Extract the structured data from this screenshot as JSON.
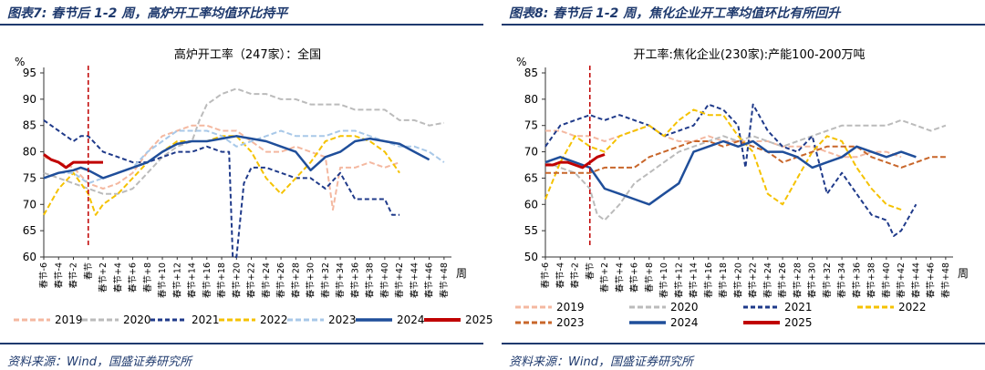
{
  "left": {
    "figure_title": "图表7: 春节后 1-2 周，高炉开工率均值环比持平",
    "source": "资料来源：Wind，国盛证券研究所"
  },
  "right": {
    "figure_title": "图表8: 春节后 1-2 周，焦化企业开工率均值环比有所回升",
    "source": "资料来源：Wind，国盛证券研究所"
  },
  "chart_data": [
    {
      "type": "line",
      "title": "高炉开工率（247家）：全国",
      "ylabel": "%",
      "xlabel": "周",
      "ylim": [
        60,
        95
      ],
      "yticks": [
        60,
        65,
        70,
        75,
        80,
        85,
        90,
        95
      ],
      "x_range": [
        -6,
        49
      ],
      "event_line_x": 0,
      "xtick_labels": [
        "春节-6",
        "春节-4",
        "春节-2",
        "春节",
        "春节+2",
        "春节+4",
        "春节+6",
        "春节+8",
        "春节+10",
        "春节+12",
        "春节+14",
        "春节+16",
        "春节+18",
        "春节+20",
        "春节+22",
        "春节+24",
        "春节+26",
        "春节+28",
        "春节+30",
        "春节+32",
        "春节+34",
        "春节+36",
        "春节+38",
        "春节+40",
        "春节+42",
        "春节+44",
        "春节+46",
        "春节+48"
      ],
      "xtick_values": [
        -6,
        -4,
        -2,
        0,
        2,
        4,
        6,
        8,
        10,
        12,
        14,
        16,
        18,
        20,
        22,
        24,
        26,
        28,
        30,
        32,
        34,
        36,
        38,
        40,
        42,
        44,
        46,
        48
      ],
      "legend": [
        "2019",
        "2020",
        "2021",
        "2022",
        "2023",
        "2024",
        "2025"
      ],
      "series": [
        {
          "name": "2019",
          "color": "#f4b8a0",
          "dash": "6,3",
          "width": 2,
          "x": [
            -6,
            -4,
            -2,
            0,
            2,
            4,
            6,
            8,
            10,
            12,
            14,
            16,
            18,
            20,
            22,
            24,
            26,
            28,
            30,
            32,
            33,
            34,
            36,
            38,
            40,
            42
          ],
          "y": [
            79,
            78,
            77,
            74,
            73,
            74,
            76,
            80,
            83,
            84,
            85,
            85,
            84,
            84,
            82,
            80,
            80,
            81,
            80,
            79,
            69,
            77,
            77,
            78,
            77,
            78
          ]
        },
        {
          "name": "2020",
          "color": "#bbbbbb",
          "dash": "6,3",
          "width": 2,
          "x": [
            -6,
            -4,
            -2,
            0,
            2,
            4,
            6,
            8,
            10,
            12,
            14,
            15,
            16,
            18,
            20,
            22,
            24,
            26,
            28,
            30,
            32,
            34,
            36,
            38,
            40,
            42,
            44,
            46,
            48
          ],
          "y": [
            76,
            75,
            74,
            73,
            72,
            72,
            73,
            76,
            79,
            81,
            82,
            86,
            89,
            91,
            92,
            91,
            91,
            90,
            90,
            89,
            89,
            89,
            88,
            88,
            88,
            86,
            86,
            85,
            85.5
          ]
        },
        {
          "name": "2021",
          "color": "#1f3a8a",
          "dash": "5,3",
          "width": 2,
          "x": [
            -6,
            -4,
            -2,
            -1,
            0,
            2,
            4,
            6,
            8,
            10,
            12,
            14,
            16,
            18,
            19,
            19.5,
            20,
            21,
            22,
            24,
            26,
            28,
            30,
            32,
            34,
            36,
            38,
            40,
            41,
            42
          ],
          "y": [
            86,
            84,
            82,
            83,
            83,
            80,
            79,
            78,
            78,
            79,
            80,
            80,
            81,
            80,
            80,
            60,
            60,
            74,
            77,
            77,
            76,
            75,
            75,
            73,
            76,
            71,
            71,
            71,
            68,
            68
          ]
        },
        {
          "name": "2022",
          "color": "#f5c200",
          "dash": "6,3",
          "width": 2,
          "x": [
            -6,
            -4,
            -2,
            0,
            1,
            2,
            4,
            6,
            8,
            10,
            12,
            14,
            16,
            18,
            20,
            22,
            24,
            26,
            28,
            30,
            32,
            34,
            36,
            38,
            40,
            42
          ],
          "y": [
            68,
            73,
            76,
            72,
            68,
            70,
            72,
            75,
            78,
            80,
            82,
            82,
            82,
            83,
            83,
            80,
            75,
            72,
            75,
            78,
            82,
            83,
            83,
            82,
            80,
            76
          ]
        },
        {
          "name": "2023",
          "color": "#a8c8e8",
          "dash": "6,3",
          "width": 2,
          "x": [
            -6,
            -4,
            -2,
            0,
            2,
            4,
            6,
            8,
            10,
            12,
            14,
            16,
            18,
            20,
            22,
            24,
            26,
            28,
            30,
            32,
            34,
            36,
            38,
            40,
            42,
            44,
            46,
            48
          ],
          "y": [
            75,
            76,
            76,
            74,
            75,
            76,
            77,
            80,
            82,
            84,
            84,
            84,
            83,
            81,
            82,
            83,
            84,
            83,
            83,
            83,
            84,
            84,
            83,
            82,
            81,
            81,
            80,
            78
          ]
        },
        {
          "name": "2024",
          "color": "#1f4e9a",
          "dash": "",
          "width": 2.5,
          "x": [
            -6,
            -4,
            -2,
            -1,
            0,
            2,
            4,
            6,
            8,
            10,
            12,
            14,
            16,
            18,
            20,
            22,
            24,
            26,
            28,
            30,
            32,
            34,
            36,
            38,
            40,
            42,
            44,
            46
          ],
          "y": [
            75,
            76,
            76.5,
            77,
            76.5,
            75,
            76,
            77,
            78,
            80,
            81.5,
            82,
            82,
            82.5,
            83,
            82.5,
            82,
            81,
            80,
            76.5,
            79,
            80,
            82,
            82.5,
            82,
            81.5,
            80,
            78.5
          ]
        },
        {
          "name": "2025",
          "color": "#c00000",
          "dash": "",
          "width": 3,
          "x": [
            -6,
            -5,
            -4,
            -3,
            -2,
            -1,
            0,
            1,
            2
          ],
          "y": [
            79.5,
            78.5,
            78,
            77,
            78,
            78,
            78,
            78,
            78
          ]
        }
      ]
    },
    {
      "type": "line",
      "title": "开工率:焦化企业(230家):产能100-200万吨",
      "ylabel": "%",
      "xlabel": "周",
      "ylim": [
        50,
        85
      ],
      "yticks": [
        50,
        55,
        60,
        65,
        70,
        75,
        80,
        85
      ],
      "x_range": [
        -6,
        49
      ],
      "event_line_x": 0,
      "xtick_labels": [
        "春节-6",
        "春节-4",
        "春节-2",
        "春节",
        "春节+2",
        "春节+4",
        "春节+6",
        "春节+8",
        "春节+10",
        "春节+12",
        "春节+14",
        "春节+16",
        "春节+18",
        "春节+20",
        "春节+22",
        "春节+24",
        "春节+26",
        "春节+28",
        "春节+30",
        "春节+32",
        "春节+34",
        "春节+36",
        "春节+38",
        "春节+40",
        "春节+42",
        "春节+44",
        "春节+46",
        "春节+48"
      ],
      "xtick_values": [
        -6,
        -4,
        -2,
        0,
        2,
        4,
        6,
        8,
        10,
        12,
        14,
        16,
        18,
        20,
        22,
        24,
        26,
        28,
        30,
        32,
        34,
        36,
        38,
        40,
        42,
        44,
        46,
        48
      ],
      "legend": [
        "2019",
        "2020",
        "2021",
        "2022",
        "2023",
        "2024",
        "2025"
      ],
      "series": [
        {
          "name": "2019",
          "color": "#f4b8a0",
          "dash": "6,3",
          "width": 2,
          "x": [
            -6,
            -4,
            -2,
            0,
            2,
            4,
            6,
            8,
            10,
            12,
            14,
            16,
            18,
            20,
            22,
            24,
            26,
            28,
            30,
            32,
            34,
            36,
            38,
            40,
            42
          ],
          "y": [
            74,
            74,
            73,
            73,
            72,
            73,
            74,
            75,
            73,
            72,
            72,
            73,
            72,
            72,
            72,
            72,
            71,
            71,
            71,
            70,
            69,
            69,
            70,
            70,
            69
          ]
        },
        {
          "name": "2020",
          "color": "#bbbbbb",
          "dash": "6,3",
          "width": 2,
          "x": [
            -6,
            -4,
            -2,
            0,
            1,
            2,
            4,
            6,
            8,
            10,
            12,
            14,
            16,
            18,
            20,
            22,
            24,
            26,
            28,
            30,
            32,
            34,
            36,
            38,
            40,
            42,
            44,
            46,
            48
          ],
          "y": [
            68,
            67,
            66,
            63,
            58,
            57,
            60,
            64,
            66,
            68,
            70,
            71,
            72,
            73,
            72,
            73,
            72,
            71,
            72,
            73,
            74,
            75,
            75,
            75,
            75,
            76,
            75,
            74,
            75
          ]
        },
        {
          "name": "2021",
          "color": "#1f3a8a",
          "dash": "5,3",
          "width": 2,
          "x": [
            -6,
            -4,
            -2,
            0,
            2,
            4,
            6,
            8,
            10,
            12,
            14,
            16,
            18,
            20,
            21,
            22,
            24,
            26,
            28,
            30,
            32,
            34,
            36,
            38,
            40,
            41,
            42,
            44
          ],
          "y": [
            71,
            75,
            76,
            77,
            76,
            77,
            76,
            75,
            73,
            74,
            75,
            79,
            78,
            75,
            67,
            79,
            74,
            71,
            70,
            73,
            62,
            66,
            62,
            58,
            57,
            54,
            55,
            60
          ]
        },
        {
          "name": "2022",
          "color": "#f5c200",
          "dash": "6,3",
          "width": 2,
          "x": [
            -6,
            -4,
            -2,
            0,
            2,
            4,
            6,
            8,
            10,
            12,
            14,
            16,
            18,
            20,
            22,
            24,
            26,
            28,
            30,
            32,
            34,
            36,
            38,
            40,
            42
          ],
          "y": [
            61,
            68,
            73,
            71,
            70,
            73,
            74,
            75,
            73,
            76,
            78,
            77,
            77,
            73,
            70,
            62,
            60,
            65,
            70,
            73,
            72,
            67,
            63,
            60,
            59
          ]
        },
        {
          "name": "2023",
          "color": "#c8662a",
          "dash": "6,3",
          "width": 2,
          "x": [
            -6,
            -4,
            -2,
            0,
            2,
            4,
            6,
            8,
            10,
            12,
            14,
            16,
            18,
            20,
            22,
            24,
            26,
            28,
            30,
            32,
            34,
            36,
            38,
            40,
            42,
            44,
            46,
            48
          ],
          "y": [
            66,
            66,
            66,
            66,
            67,
            67,
            67,
            69,
            70,
            71,
            72,
            72,
            71,
            72,
            71,
            70,
            68,
            69,
            70,
            71,
            71,
            71,
            69,
            68,
            67,
            68,
            69,
            69
          ]
        },
        {
          "name": "2024",
          "color": "#1f4e9a",
          "dash": "",
          "width": 2.5,
          "x": [
            -6,
            -4,
            -2,
            0,
            2,
            4,
            6,
            8,
            10,
            12,
            14,
            16,
            18,
            20,
            22,
            24,
            26,
            28,
            30,
            32,
            34,
            36,
            38,
            40,
            42,
            44
          ],
          "y": [
            68,
            69,
            68,
            67,
            63,
            62,
            61,
            60,
            62,
            64,
            70,
            71,
            72,
            71,
            72,
            70,
            70,
            69,
            67,
            68,
            69,
            71,
            70,
            69,
            70,
            69
          ]
        },
        {
          "name": "2025",
          "color": "#c00000",
          "dash": "",
          "width": 3,
          "x": [
            -6,
            -5,
            -4,
            -3,
            -2,
            -1,
            0,
            1,
            2
          ],
          "y": [
            67.5,
            67.5,
            68,
            68,
            67.5,
            67,
            68,
            69,
            69.5
          ]
        }
      ]
    }
  ]
}
